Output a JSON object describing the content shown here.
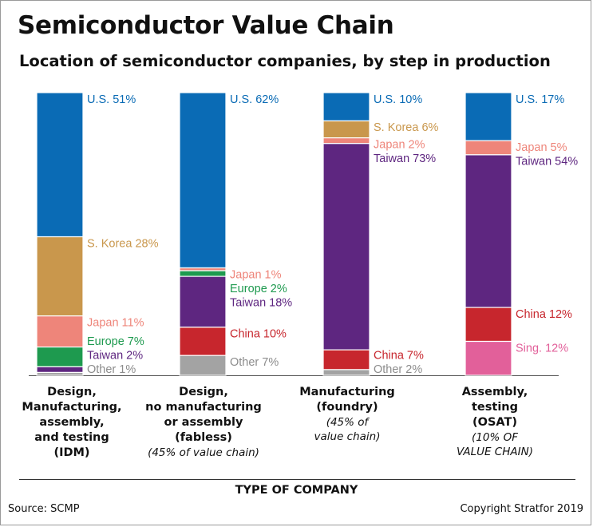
{
  "title": "Semiconductor Value Chain",
  "subtitle": "Location of semiconductor companies, by step in production",
  "categories": [
    {
      "main": "Design,\nManufacturing,\nassembly,\nand testing\n(IDM)",
      "note": ""
    },
    {
      "main": "Design,\nno manufacturing\nor assembly\n(fabless)",
      "note": "(45% of value chain)"
    },
    {
      "main": "Manufacturing\n(foundry)",
      "note": "(45% of\nvalue chain)"
    },
    {
      "main": "Assembly,\ntesting\n(OSAT)",
      "note": "(10% OF\nVALUE CHAIN)"
    }
  ],
  "xlabel": "TYPE OF COMPANY",
  "source": "Source: SCMP",
  "copyright": "Copyright Stratfor 2019",
  "chart_data": {
    "type": "bar",
    "stacked": true,
    "title": "Semiconductor Value Chain",
    "subtitle": "Location of semiconductor companies, by step in production",
    "xlabel": "TYPE OF COMPANY",
    "ylabel": "",
    "unit": "%",
    "ylim": [
      0,
      100
    ],
    "categories": [
      "IDM",
      "fabless",
      "foundry",
      "OSAT"
    ],
    "colors": {
      "U.S.": "#0a6bb5",
      "S. Korea": "#c9974c",
      "Japan": "#ee857a",
      "Europe": "#1e9a4f",
      "Taiwan": "#5e2680",
      "China": "#c7262d",
      "Sing.": "#e2609a",
      "Other": "#a3a3a3"
    },
    "bars": [
      {
        "segments": [
          {
            "name": "U.S.",
            "value": 51,
            "label": "U.S. 51%"
          },
          {
            "name": "S. Korea",
            "value": 28,
            "label": "S. Korea 28%"
          },
          {
            "name": "Japan",
            "value": 11,
            "label": "Japan 11%"
          },
          {
            "name": "Europe",
            "value": 7,
            "label": "Europe 7%"
          },
          {
            "name": "Taiwan",
            "value": 2,
            "label": "Taiwan 2%"
          },
          {
            "name": "Other",
            "value": 1,
            "label": "Other 1%"
          }
        ]
      },
      {
        "segments": [
          {
            "name": "U.S.",
            "value": 62,
            "label": "U.S. 62%"
          },
          {
            "name": "Japan",
            "value": 1,
            "label": "Japan 1%"
          },
          {
            "name": "Europe",
            "value": 2,
            "label": "Europe 2%"
          },
          {
            "name": "Taiwan",
            "value": 18,
            "label": "Taiwan 18%"
          },
          {
            "name": "China",
            "value": 10,
            "label": "China 10%"
          },
          {
            "name": "Other",
            "value": 7,
            "label": "Other 7%"
          }
        ]
      },
      {
        "segments": [
          {
            "name": "U.S.",
            "value": 10,
            "label": "U.S. 10%"
          },
          {
            "name": "S. Korea",
            "value": 6,
            "label": "S. Korea 6%"
          },
          {
            "name": "Japan",
            "value": 2,
            "label": "Japan 2%"
          },
          {
            "name": "Taiwan",
            "value": 73,
            "label": "Taiwan 73%"
          },
          {
            "name": "China",
            "value": 7,
            "label": "China 7%"
          },
          {
            "name": "Other",
            "value": 2,
            "label": "Other 2%"
          }
        ]
      },
      {
        "segments": [
          {
            "name": "U.S.",
            "value": 17,
            "label": "U.S. 17%"
          },
          {
            "name": "Japan",
            "value": 5,
            "label": "Japan 5%"
          },
          {
            "name": "Taiwan",
            "value": 54,
            "label": "Taiwan 54%"
          },
          {
            "name": "China",
            "value": 12,
            "label": "China 12%"
          },
          {
            "name": "Sing.",
            "value": 12,
            "label": "Sing. 12%"
          }
        ]
      }
    ]
  }
}
